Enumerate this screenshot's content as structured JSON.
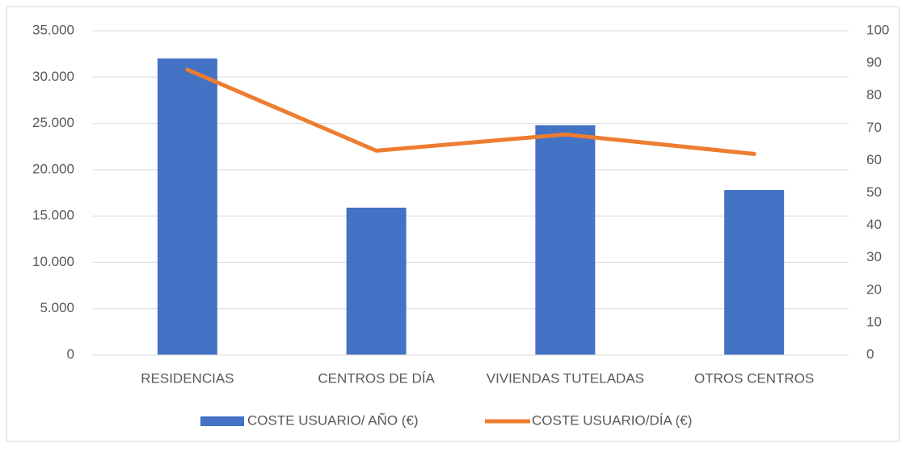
{
  "chart_data": {
    "type": "bar",
    "categories": [
      "RESIDENCIAS",
      "CENTROS DE DÍA",
      "VIVIENDAS TUTELADAS",
      "OTROS CENTROS"
    ],
    "series": [
      {
        "name": "COSTE USUARIO/ AÑO (€)",
        "type": "bar",
        "color": "#4472c4",
        "values": [
          32000,
          15900,
          24800,
          17800
        ]
      },
      {
        "name": "COSTE USUARIO/DÍA (€)",
        "type": "line",
        "axis": "y2",
        "color": "#ed7d31",
        "values": [
          88,
          63,
          68,
          62
        ]
      }
    ],
    "ylim": [
      0,
      35000
    ],
    "yticks": [
      0,
      {
        "value": 5000,
        "label": "5.000"
      },
      {
        "value": 10000,
        "label": "10.000"
      },
      {
        "value": 15000,
        "label": "15.000"
      },
      {
        "value": 20000,
        "label": "20.000"
      },
      {
        "value": 25000,
        "label": "25.000"
      },
      {
        "value": 30000,
        "label": "30.000"
      },
      {
        "value": 35000,
        "label": "35.000"
      }
    ],
    "y2lim": [
      0,
      100
    ],
    "y2ticks": [
      0,
      10,
      20,
      30,
      40,
      50,
      60,
      70,
      80,
      90,
      100
    ],
    "grid": true,
    "legend": "bottom"
  }
}
